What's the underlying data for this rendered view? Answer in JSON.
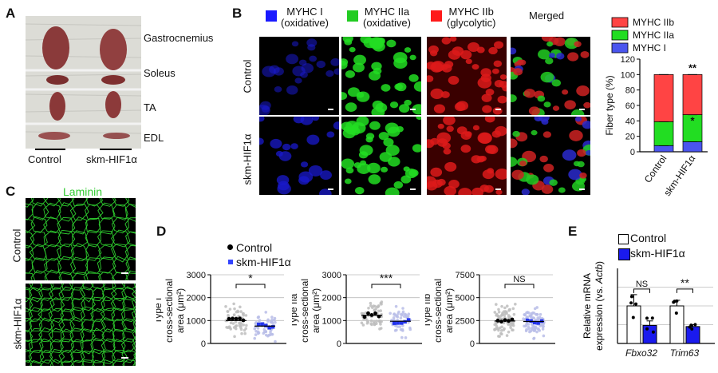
{
  "panels": {
    "a": {
      "label": "A",
      "muscles": [
        "Gastrocnemius",
        "Soleus",
        "TA",
        "EDL"
      ],
      "groups": [
        "Control",
        "skm-HIF1α"
      ]
    },
    "b": {
      "label": "B",
      "columns": [
        {
          "name": "MYHC I",
          "sub": "(oxidative)",
          "color": "#1a1aff"
        },
        {
          "name": "MYHC IIa",
          "sub": "(oxidative)",
          "color": "#22cc22"
        },
        {
          "name": "MYHC IIb",
          "sub": "(glycolytic)",
          "color": "#ff1a1a"
        },
        {
          "name": "Merged",
          "sub": "",
          "color": ""
        }
      ],
      "rows": [
        "Control",
        "skm-HIF1α"
      ]
    },
    "c": {
      "label": "C",
      "stain": "Laminin",
      "rows": [
        "Control",
        "skm-HIF1α"
      ]
    },
    "d": {
      "label": "D",
      "legend": [
        "Control",
        "skm-HIF1α"
      ]
    },
    "e": {
      "label": "E",
      "legend": [
        "Control",
        "skm-HIF1α"
      ]
    }
  },
  "chart_data": [
    {
      "id": "fiber-type",
      "type": "bar",
      "stacked": true,
      "categories": [
        "Control",
        "skm-HIF1α"
      ],
      "ylabel": "Fiber type (%)",
      "ylim": [
        0,
        120
      ],
      "yticks": [
        0,
        20,
        40,
        60,
        80,
        100,
        120
      ],
      "series": [
        {
          "name": "MYHC I",
          "color": "#4a55ee",
          "values": [
            8,
            13
          ]
        },
        {
          "name": "MYHC IIa",
          "color": "#22dd22",
          "values": [
            31,
            35
          ]
        },
        {
          "name": "MYHC IIb",
          "color": "#ff4444",
          "values": [
            61,
            52
          ]
        }
      ],
      "annotations": [
        {
          "category": "skm-HIF1α",
          "text": "**",
          "at": "top"
        },
        {
          "category": "skm-HIF1α",
          "text": "*",
          "at": "MYHC IIa"
        }
      ],
      "legend": "top"
    },
    {
      "id": "type-i-csa",
      "type": "scatter",
      "title_lines": [
        "Type I",
        "cross-sectional",
        "area (μm²)"
      ],
      "categories": [
        "Control",
        "skm-HIF1α"
      ],
      "means": [
        1000,
        760
      ],
      "ylim": [
        0,
        3000
      ],
      "yticks": [
        0,
        1000,
        2000,
        3000
      ],
      "significance": "*"
    },
    {
      "id": "type-iia-csa",
      "type": "scatter",
      "title_lines": [
        "Type IIa",
        "cross-sectional",
        "area (μm²)"
      ],
      "categories": [
        "Control",
        "skm-HIF1α"
      ],
      "means": [
        1230,
        970
      ],
      "ylim": [
        0,
        3000
      ],
      "yticks": [
        0,
        1000,
        2000,
        3000
      ],
      "significance": "***"
    },
    {
      "id": "type-iib-csa",
      "type": "scatter",
      "title_lines": [
        "Type IIb",
        "cross-sectional",
        "area (μm²)"
      ],
      "categories": [
        "Control",
        "skm-HIF1α"
      ],
      "means": [
        2450,
        2400
      ],
      "ylim": [
        0,
        7500
      ],
      "yticks": [
        0,
        2500,
        5000,
        7500
      ],
      "significance": "NS"
    },
    {
      "id": "relative-mrna",
      "type": "bar",
      "ylabel_parts": [
        "Relative mRNA",
        "expression (vs. ",
        "Actb",
        ")"
      ],
      "categories": [
        "Fbxo32",
        "Trim63"
      ],
      "series": [
        {
          "name": "Control",
          "values": [
            1.0,
            1.0
          ],
          "errors": [
            0.3,
            0.15
          ]
        },
        {
          "name": "skm-HIF1α",
          "values": [
            0.48,
            0.45
          ],
          "errors": [
            0.12,
            0.05
          ]
        }
      ],
      "ylim": [
        0,
        2.0
      ],
      "significance": [
        "NS",
        "**"
      ]
    }
  ]
}
